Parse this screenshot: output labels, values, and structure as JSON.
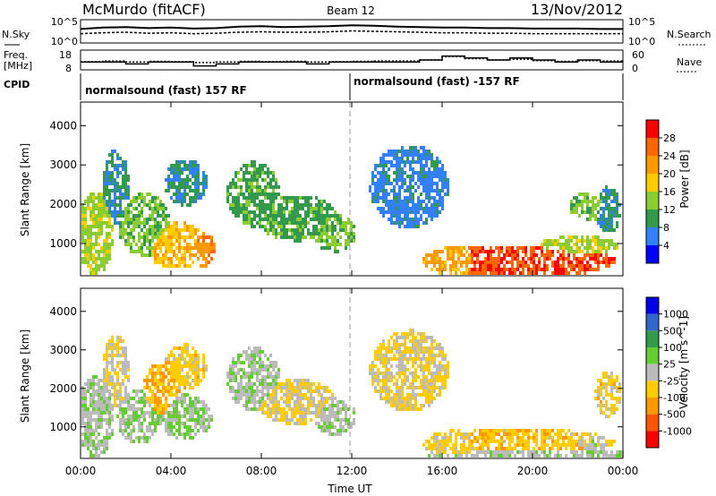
{
  "header": {
    "station": "McMurdo (fitACF)",
    "beam": "Beam 12",
    "date": "13/Nov/2012"
  },
  "noise_panel": {
    "left_label": "N.Sky",
    "right_label": "N.Search",
    "left_ticks": [
      "10^5",
      "10^0"
    ],
    "right_ticks": [
      "10^5",
      "10^0"
    ]
  },
  "freq_panel": {
    "left_label_1": "Freq.",
    "left_label_2": "[MHz]",
    "right_label": "Nave",
    "left_ticks": [
      "18",
      "8"
    ],
    "right_ticks": [
      "60",
      "0"
    ]
  },
  "cpid_panel": {
    "label": "CPID",
    "segments": [
      {
        "text": "normalsound (fast) 157 RF",
        "start": "00:00"
      },
      {
        "text": "normalsound (fast) -157 RF",
        "start": "12:00"
      }
    ]
  },
  "power_panel": {
    "ylabel": "Slant Range [km]",
    "colorbar_label": "Power [dB]",
    "colorbar_ticks": [
      "28",
      "24",
      "20",
      "16",
      "12",
      "8",
      "4"
    ],
    "colorbar_colors": [
      "#ff0000",
      "#ff6600",
      "#ff9900",
      "#ffcc00",
      "#8ccc33",
      "#33994c",
      "#3380ff",
      "#0000ff"
    ]
  },
  "velocity_panel": {
    "ylabel": "Slant Range [km]",
    "colorbar_label": "Velocity [m s^-1]",
    "colorbar_ticks": [
      "1000",
      "500",
      "100",
      "25",
      "-25",
      "-100",
      "-500",
      "-1000"
    ],
    "colorbar_colors": [
      "#0000e6",
      "#3366cc",
      "#33994c",
      "#66cc33",
      "#bbbbbb",
      "#ffcc00",
      "#ff9900",
      "#ff5500",
      "#ff0000"
    ]
  },
  "xaxis": {
    "label": "Time UT",
    "ticks": [
      "00:00",
      "04:00",
      "08:00",
      "12:00",
      "16:00",
      "20:00",
      "00:00"
    ]
  },
  "chart_data": [
    {
      "type": "line",
      "title": "N.Sky / N.Search",
      "x": [
        0,
        1,
        2,
        3,
        4,
        5,
        6,
        7,
        8,
        9,
        10,
        11,
        12,
        13,
        14,
        15,
        16,
        17,
        18,
        19,
        20,
        21,
        22,
        23,
        24
      ],
      "series": [
        {
          "name": "N.Sky",
          "values": [
            3.0,
            3.3,
            3.4,
            3.2,
            3.3,
            3.1,
            3.2,
            3.5,
            3.6,
            3.4,
            3.5,
            3.6,
            3.8,
            3.7,
            3.5,
            3.4,
            3.3,
            3.3,
            3.2,
            3.2,
            3.1,
            3.1,
            3.1,
            3.0,
            3.0
          ]
        },
        {
          "name": "N.Search",
          "values": [
            2.0,
            2.2,
            2.3,
            2.1,
            2.2,
            2.0,
            2.1,
            2.3,
            2.4,
            2.3,
            2.3,
            2.4,
            2.6,
            2.5,
            2.4,
            2.3,
            2.2,
            2.2,
            2.1,
            2.1,
            2.0,
            2.0,
            2.0,
            2.0,
            2.0
          ]
        }
      ],
      "xlim": [
        0,
        24
      ],
      "ylim": [
        0,
        5
      ]
    },
    {
      "type": "line",
      "title": "Freq / Nave",
      "x": [
        0,
        1,
        2,
        3,
        4,
        5,
        6,
        7,
        8,
        9,
        10,
        11,
        12,
        13,
        14,
        15,
        16,
        17,
        18,
        19,
        20,
        21,
        22,
        23,
        24
      ],
      "series": [
        {
          "name": "Freq.",
          "values": [
            12,
            12,
            11,
            12,
            12,
            10,
            11,
            12,
            12,
            12,
            11,
            12,
            12,
            12,
            12,
            13,
            15,
            14,
            13,
            14,
            13,
            12,
            13,
            12,
            12
          ]
        },
        {
          "name": "Nave",
          "values": [
            25,
            27,
            24,
            26,
            25,
            22,
            24,
            26,
            25,
            26,
            24,
            25,
            26,
            27,
            27,
            30,
            40,
            34,
            30,
            32,
            28,
            26,
            28,
            27,
            26
          ]
        }
      ],
      "ylim_freq": [
        8,
        18
      ],
      "ylim_nave": [
        0,
        60
      ]
    },
    {
      "type": "heatmap",
      "title": "Power [dB]",
      "xlabel": "Time UT",
      "ylabel": "Slant Range [km]",
      "x_unit": "hours UT",
      "xlim": [
        0,
        24
      ],
      "ylim": [
        180,
        4600
      ],
      "yticks": [
        1000,
        2000,
        3000,
        4000
      ],
      "zlim": [
        0,
        30
      ],
      "blobs": [
        {
          "x": 0.6,
          "y": 1300,
          "dx": 0.7,
          "dy": 900,
          "v": 14
        },
        {
          "x": 1.5,
          "y": 2500,
          "dx": 0.5,
          "dy": 800,
          "v": 8
        },
        {
          "x": 2.8,
          "y": 1500,
          "dx": 1.0,
          "dy": 700,
          "v": 12
        },
        {
          "x": 4.2,
          "y": 1000,
          "dx": 1.2,
          "dy": 500,
          "v": 18
        },
        {
          "x": 5.3,
          "y": 900,
          "dx": 0.5,
          "dy": 400,
          "v": 22
        },
        {
          "x": 4.6,
          "y": 2600,
          "dx": 0.8,
          "dy": 500,
          "v": 8
        },
        {
          "x": 7.6,
          "y": 2300,
          "dx": 1.0,
          "dy": 700,
          "v": 10
        },
        {
          "x": 9.5,
          "y": 1700,
          "dx": 1.5,
          "dy": 500,
          "v": 10
        },
        {
          "x": 11.2,
          "y": 1300,
          "dx": 0.8,
          "dy": 400,
          "v": 12
        },
        {
          "x": 14.5,
          "y": 2500,
          "dx": 1.5,
          "dy": 900,
          "v": 6
        },
        {
          "x": 16.5,
          "y": 600,
          "dx": 1.2,
          "dy": 300,
          "v": 20
        },
        {
          "x": 19.5,
          "y": 600,
          "dx": 3.5,
          "dy": 350,
          "v": 26
        },
        {
          "x": 22.0,
          "y": 1000,
          "dx": 1.5,
          "dy": 200,
          "v": 14
        },
        {
          "x": 22.5,
          "y": 2000,
          "dx": 0.8,
          "dy": 300,
          "v": 12
        },
        {
          "x": 23.3,
          "y": 1900,
          "dx": 0.5,
          "dy": 500,
          "v": 8
        }
      ]
    },
    {
      "type": "heatmap",
      "title": "Velocity [m s^-1]",
      "xlabel": "Time UT",
      "ylabel": "Slant Range [km]",
      "x_unit": "hours UT",
      "xlim": [
        0,
        24
      ],
      "ylim": [
        180,
        4600
      ],
      "yticks": [
        1000,
        2000,
        3000,
        4000
      ],
      "zlim": [
        -1000,
        1000
      ],
      "blobs": [
        {
          "x": 0.6,
          "y": 1300,
          "dx": 0.7,
          "dy": 900,
          "v": 80
        },
        {
          "x": 1.5,
          "y": 2500,
          "dx": 0.5,
          "dy": 800,
          "v": -80
        },
        {
          "x": 2.5,
          "y": 1300,
          "dx": 0.8,
          "dy": 600,
          "v": 100
        },
        {
          "x": 3.5,
          "y": 2000,
          "dx": 0.7,
          "dy": 600,
          "v": -300
        },
        {
          "x": 4.6,
          "y": 1300,
          "dx": 1.0,
          "dy": 500,
          "v": 120
        },
        {
          "x": 4.6,
          "y": 2600,
          "dx": 0.8,
          "dy": 500,
          "v": -200
        },
        {
          "x": 7.6,
          "y": 2300,
          "dx": 1.0,
          "dy": 700,
          "v": 60
        },
        {
          "x": 9.5,
          "y": 1700,
          "dx": 1.5,
          "dy": 500,
          "v": -150
        },
        {
          "x": 11.2,
          "y": 1300,
          "dx": 0.8,
          "dy": 400,
          "v": 60
        },
        {
          "x": 14.5,
          "y": 2500,
          "dx": 1.5,
          "dy": 900,
          "v": -150
        },
        {
          "x": 16.5,
          "y": 600,
          "dx": 1.2,
          "dy": 300,
          "v": -150
        },
        {
          "x": 19.5,
          "y": 650,
          "dx": 3.5,
          "dy": 300,
          "v": -250
        },
        {
          "x": 20.0,
          "y": 320,
          "dx": 4.0,
          "dy": 120,
          "v": 60
        },
        {
          "x": 22.5,
          "y": 650,
          "dx": 0.8,
          "dy": 200,
          "v": 0
        },
        {
          "x": 23.3,
          "y": 1900,
          "dx": 0.5,
          "dy": 500,
          "v": -200
        }
      ]
    }
  ]
}
